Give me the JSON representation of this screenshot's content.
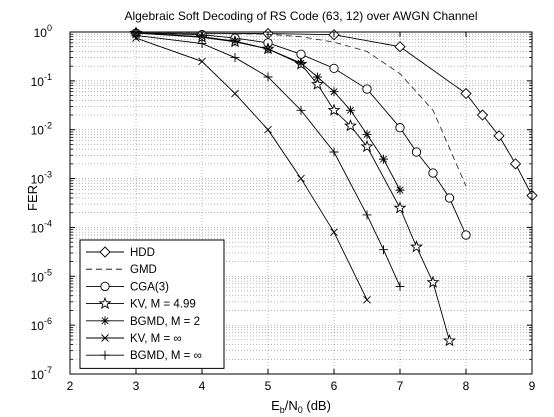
{
  "chart_data": {
    "type": "line",
    "title": "Algebraic Soft Decoding of RS Code (63, 12) over AWGN Channel",
    "xlabel": "E_b/N_0 (dB)",
    "xlabel_parts": {
      "main": "E",
      "sub1": "b",
      "mid": "/N",
      "sub2": "0",
      "tail": " (dB)"
    },
    "ylabel": "FER",
    "xlim": [
      2,
      9
    ],
    "ylim": [
      1e-07,
      1
    ],
    "yscale": "log",
    "grid": true,
    "legend_position": "bottom-left",
    "x_ticks": [
      2,
      3,
      4,
      5,
      6,
      7,
      8,
      9
    ],
    "y_ticks": [
      {
        "mantissa": "10",
        "exponent": "0"
      },
      {
        "mantissa": "10",
        "exponent": "-1"
      },
      {
        "mantissa": "10",
        "exponent": "-2"
      },
      {
        "mantissa": "10",
        "exponent": "-3"
      },
      {
        "mantissa": "10",
        "exponent": "-4"
      },
      {
        "mantissa": "10",
        "exponent": "-5"
      },
      {
        "mantissa": "10",
        "exponent": "-6"
      },
      {
        "mantissa": "10",
        "exponent": "-7"
      }
    ],
    "series": [
      {
        "name": "HDD",
        "marker": "diamond",
        "dash": "solid",
        "x": [
          3,
          5,
          6,
          7,
          8,
          8.25,
          8.5,
          8.75,
          9
        ],
        "y": [
          0.95,
          0.93,
          0.88,
          0.5,
          0.055,
          0.02,
          0.0075,
          0.002,
          0.00045
        ]
      },
      {
        "name": "GMD",
        "marker": "none",
        "dash": "dashed",
        "x": [
          3,
          4,
          5,
          5.5,
          6,
          6.5,
          7,
          7.5,
          8
        ],
        "y": [
          0.95,
          0.94,
          0.9,
          0.8,
          0.62,
          0.4,
          0.14,
          0.025,
          0.0007
        ]
      },
      {
        "name": "CGA(3)",
        "marker": "circle",
        "dash": "solid",
        "x": [
          3,
          4,
          4.5,
          5,
          5.5,
          6,
          6.5,
          7,
          7.25,
          7.5,
          7.75,
          8
        ],
        "y": [
          0.95,
          0.88,
          0.75,
          0.6,
          0.35,
          0.18,
          0.068,
          0.011,
          0.0035,
          0.0013,
          0.0004,
          7e-05
        ]
      },
      {
        "name": "KV, M = 4.99",
        "marker": "star",
        "dash": "solid",
        "x": [
          3,
          4,
          4.5,
          5,
          5.5,
          5.75,
          6,
          6.25,
          6.5,
          7,
          7.25,
          7.5,
          7.75
        ],
        "y": [
          0.95,
          0.78,
          0.63,
          0.45,
          0.22,
          0.085,
          0.025,
          0.012,
          0.0045,
          0.00025,
          4e-05,
          7.5e-06,
          4.8e-07
        ]
      },
      {
        "name": "BGMD, M = 2",
        "marker": "asterisk",
        "dash": "solid",
        "x": [
          3,
          4,
          4.5,
          5,
          5.5,
          5.75,
          6,
          6.25,
          6.5,
          6.75,
          7
        ],
        "y": [
          0.95,
          0.8,
          0.65,
          0.45,
          0.23,
          0.12,
          0.06,
          0.025,
          0.008,
          0.0025,
          0.00058
        ]
      },
      {
        "name": "KV, M = ∞",
        "marker": "x",
        "dash": "solid",
        "x": [
          3,
          4,
          4.5,
          5,
          5.5,
          6,
          6.5
        ],
        "y": [
          0.75,
          0.25,
          0.055,
          0.01,
          0.001,
          8e-05,
          3.3e-06
        ]
      },
      {
        "name": "BGMD, M = ∞",
        "marker": "plus",
        "dash": "solid",
        "x": [
          3,
          4,
          4.5,
          5,
          5.5,
          6,
          6.5,
          6.75,
          7
        ],
        "y": [
          0.85,
          0.58,
          0.3,
          0.12,
          0.025,
          0.0035,
          0.00018,
          3.5e-05,
          6.2e-06
        ]
      }
    ]
  }
}
